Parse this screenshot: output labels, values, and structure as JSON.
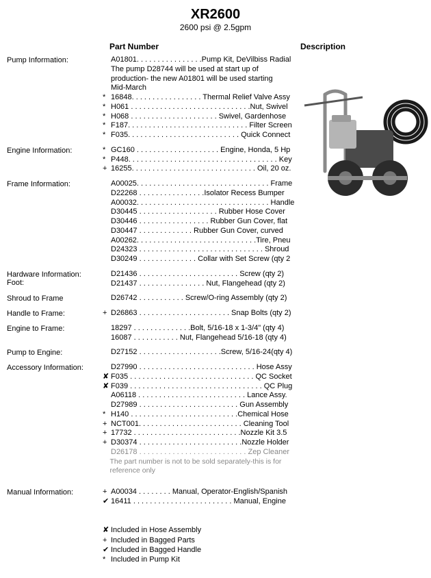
{
  "title": "XR2600",
  "subtitle": "2600 psi @ 2.5gpm",
  "headers": {
    "left": "Part Number",
    "right": "Description"
  },
  "sections": [
    {
      "label": "Pump Information:",
      "lines": [
        {
          "mark": "",
          "text": "A01801. . . . . . . . . . . . . . . .Pump Kit, DeVilbiss Radial"
        },
        {
          "mark": "",
          "text": "The pump D28744 will be used at start up of"
        },
        {
          "mark": "",
          "text": "production- the new A01801 will be used starting"
        },
        {
          "mark": "",
          "text": "Mid-March"
        },
        {
          "mark": " ",
          "text": " "
        },
        {
          "mark": "*",
          "text": "16848. . . . . . . . . . . . . . . . . Thermal Relief Valve Assy"
        },
        {
          "mark": "*",
          "text": "H061  . . . . . . . . . . . . . . . . . . . . . . . . . . . . .Nut, Swivel"
        },
        {
          "mark": "*",
          "text": "H068  . . . . . . . . . . . . . . . . . . . . . Swivel, Gardenhose"
        },
        {
          "mark": "*",
          "text": "F187. . . . . . . . . . . . . . . . . . . . . . . . . . . . . Filter Screen"
        },
        {
          "mark": "*",
          "text": "F035. . . . . . . . . . . . . . . . . . . . . . . . . . . Quick Connect"
        }
      ]
    },
    {
      "label": "Engine Information:",
      "lines": [
        {
          "mark": "*",
          "text": "GC160 . . . . . . . . . . . . . . . . . . . . Engine, Honda, 5 Hp"
        },
        {
          "mark": "*",
          "text": "P448. . . . . . . . . . . . . . . . . . . . . . . . . . . . . . . . . . . . Key"
        },
        {
          "mark": "+",
          "text": "16255. . . . . . . . . . . . . . . . . . . . . . . . . . . . . . Oil, 20 oz."
        }
      ]
    },
    {
      "label": "Frame Information:",
      "lines": [
        {
          "mark": "",
          "text": "A00025. . . . . . . . . . . . . . . . . . . . . . . . . . . . . . . . Frame"
        },
        {
          "mark": "",
          "text": "D22268  . . . . . . . . . . . . . . . .Isolator Recess Bumper"
        },
        {
          "mark": "",
          "text": "A00032. . . . . . . . . . . . . . . . . . . . . . . . . . . . . . . . Handle"
        },
        {
          "mark": "",
          "text": "D30445  . . . . . . . . . . . . . . . . . . . Rubber Hose Cover"
        },
        {
          "mark": "",
          "text": "D30446  . . . . . . . . . . . . . . . . .  Rubber Gun Cover, flat"
        },
        {
          "mark": "",
          "text": "D30447  . . . . . . . . . . . . .   Rubber Gun Cover, curved"
        },
        {
          "mark": "",
          "text": "A00262. . . . . . . . . . . . . . . . . . . . . . . . . . . . .Tire, Pneu"
        },
        {
          "mark": "",
          "text": "D24323  . . . . . . . . . . . . . . . . . . . . . . . . . . . . . . Shroud"
        },
        {
          "mark": "",
          "text": "D30249  . . . . . . . . . . . . . .  Collar with Set Screw (qty 2"
        }
      ]
    },
    {
      "label": "Hardware Information:\nFoot:",
      "lines": [
        {
          "mark": "",
          "text": "D21436   . . . . . . . . . . . . . . . . . . . . . . . .  Screw (qty 2)"
        },
        {
          "mark": "",
          "text": "D21437   . . . . . . . . . . . . . . . . Nut, Flangehead (qty 2)"
        }
      ]
    },
    {
      "label": "Shroud to Frame",
      "lines": [
        {
          "mark": "",
          "text": "D26742 . . . . . . . . . . .  Screw/O-ring Assembly (qty 2)"
        }
      ]
    },
    {
      "label": "Handle to Frame:",
      "lines": [
        {
          "mark": " ",
          "text": " "
        },
        {
          "mark": "+",
          "text": "D26863 . . . . . . . . . . . . . . . . . . . . . .  Snap Bolts (qty 2)"
        }
      ]
    },
    {
      "label": "Engine to Frame:",
      "lines": [
        {
          "mark": "",
          "text": "18297 . . . . . . . . . . . . . .Bolt, 5/16-18 x 1-3/4\" (qty 4)"
        },
        {
          "mark": "",
          "text": "16087 . . . . . . . . . . .  Nut, Flangehead 5/16-18 (qty 4)"
        }
      ]
    },
    {
      "label": "Pump to Engine:",
      "lines": [
        {
          "mark": "",
          "text": "D27152 . . . . . . . . . . . . . . . . . . . .Screw, 5/16-24(qty 4)"
        }
      ]
    },
    {
      "label": "Accessory Information:",
      "lines": [
        {
          "mark": "",
          "text": "D27990 . . . . . . . . . . . . . . . . . . . . . . . . . . . . Hose Assy"
        },
        {
          "mark": "✘",
          "text": "F035 . . . . . . . . . . . . . . . . . . . . . . . . . . . . . . QC Socket"
        },
        {
          "mark": "✘",
          "text": "F039 . . . . . . . . . . . . . . . . . . . . . . . . . . . . . . . . QC Plug"
        },
        {
          "mark": "",
          "text": "A06118 . . . . . . . . . . . . . . . . . . . . . . . . . . Lance Assy."
        },
        {
          "mark": "",
          "text": "D27989 . . . . . . . . . . . . . . . . . . . . . . . . Gun Assembly"
        },
        {
          "mark": "*",
          "text": "H140 . . . . . . . . . . . . . . . . . . . . . . . . . .Chemical Hose"
        },
        {
          "mark": "+",
          "text": "NCT001. . . . . . . . . . . . . . . . . . . . . . . . . Cleaning Tool"
        },
        {
          "mark": "+",
          "text": "17732 . . . . . . . . . . . . . . . . . . . . . . . . . .Nozzle Kit 3.5"
        },
        {
          "mark": "+",
          "text": "D30374 . . . . . . . . . . . . . . . . . . . . . . . . .Nozzle Holder"
        },
        {
          "mark": "",
          "text": "D26178  . . . . . . . . . . . . . . . . . . . . . . . . . . Zep Cleaner",
          "gray": true
        },
        {
          "mark": "",
          "text": "The part number is not to be sold separately-this is for reference only",
          "partnote": true
        }
      ]
    },
    {
      "label": "Manual Information:",
      "pretop": true,
      "lines": [
        {
          "mark": "+",
          "text": "A00034 . . . . . . . .  Manual, Operator-English/Spanish"
        },
        {
          "mark": "✔",
          "text": "16411 . . . . . . . . . . . . . . . . . . . . . . . .  Manual, Engine"
        }
      ]
    }
  ],
  "legend": [
    {
      "mark": "✘",
      "text": "Included in Hose Assembly"
    },
    {
      "mark": "+",
      "text": "Included in Bagged Parts"
    },
    {
      "mark": "✔",
      "text": "Included in Bagged Handle"
    },
    {
      "mark": "*",
      "text": "Included in Pump Kit"
    }
  ],
  "image": {
    "wheel_color": "#2b2b2b",
    "body_color": "#4a4a4a",
    "hose_color": "#1a1a1a",
    "frame_color": "#8a8a8a",
    "engine_color": "#b5b5b5"
  }
}
